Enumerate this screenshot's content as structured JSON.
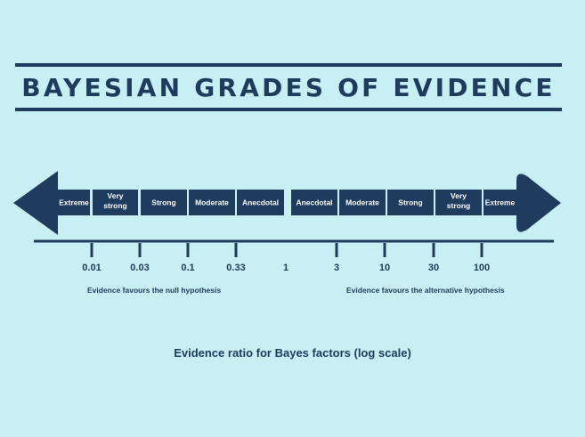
{
  "title": "BAYESIAN GRADES OF EVIDENCE",
  "grades": [
    {
      "label": "Extreme",
      "side": "null"
    },
    {
      "label": "Very\nstrong",
      "side": "null"
    },
    {
      "label": "Strong",
      "side": "null"
    },
    {
      "label": "Moderate",
      "side": "null"
    },
    {
      "label": "Anecdotal",
      "side": "null"
    },
    {
      "label": "Anecdotal",
      "side": "alternative"
    },
    {
      "label": "Moderate",
      "side": "alternative"
    },
    {
      "label": "Strong",
      "side": "alternative"
    },
    {
      "label": "Very\nstrong",
      "side": "alternative"
    },
    {
      "label": "Extreme",
      "side": "alternative"
    }
  ],
  "ticks": [
    "0.01",
    "0.03",
    "0.1",
    "0.33",
    "1",
    "3",
    "10",
    "30",
    "100"
  ],
  "side_labels": {
    "null": "Evidence favours the null hypothesis",
    "alternative": "Evidence favours the alternative hypothesis"
  },
  "caption": "Evidence ratio for Bayes factors (log scale)",
  "colors": {
    "background": "#c8eff3",
    "primary": "#1f3b5e",
    "text_on_primary": "#ffffff"
  }
}
